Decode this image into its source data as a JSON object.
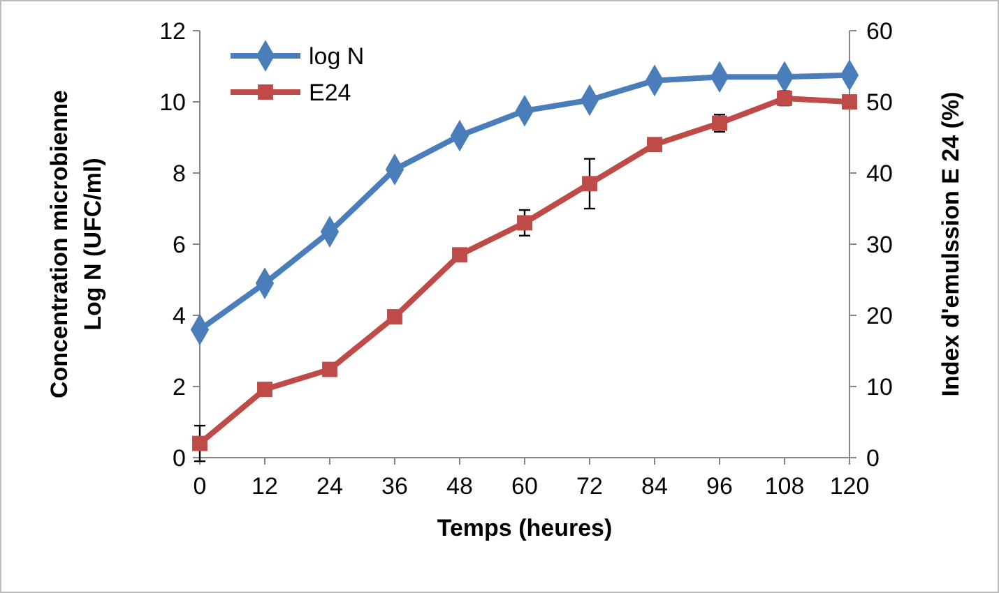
{
  "chart_data": {
    "type": "line",
    "xlabel": "Temps (heures)",
    "ylabel": "Concentration microbienne\nLog N (UFC/ml)",
    "y2label": "Index d'emulssion E 24  (%)",
    "x": [
      0,
      12,
      24,
      36,
      48,
      60,
      72,
      84,
      96,
      108,
      120
    ],
    "xlim": [
      0,
      120
    ],
    "xticks": [
      0,
      12,
      24,
      36,
      48,
      60,
      72,
      84,
      96,
      108,
      120
    ],
    "ylim": [
      0,
      12
    ],
    "yticks": [
      0,
      2,
      4,
      6,
      8,
      10,
      12
    ],
    "y2lim": [
      0,
      60
    ],
    "y2ticks": [
      0,
      10,
      20,
      30,
      40,
      50,
      60
    ],
    "legend": "top left",
    "grid": false,
    "series": [
      {
        "name": "log N",
        "color": "#4a7ebb",
        "marker": "diamond",
        "values": [
          3.6,
          4.9,
          6.35,
          8.1,
          9.05,
          9.75,
          10.05,
          10.6,
          10.7,
          10.7,
          10.75
        ]
      },
      {
        "name": "E24",
        "color": "#be4b48",
        "marker": "square",
        "axis": "y2",
        "values": [
          2,
          9.6,
          12.4,
          19.8,
          28.5,
          33,
          38.5,
          44,
          47,
          50.5,
          50
        ],
        "errors": [
          2.5,
          null,
          null,
          null,
          null,
          1.8,
          3.5,
          null,
          1.2,
          1,
          null
        ]
      }
    ]
  }
}
